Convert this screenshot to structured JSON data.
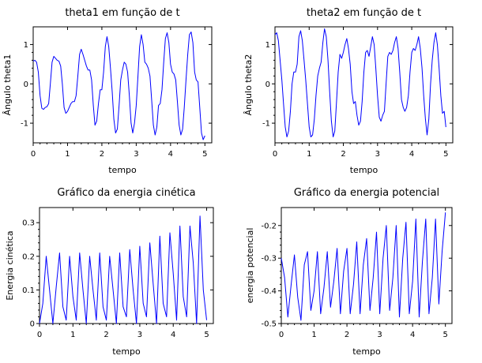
{
  "chart_data": [
    {
      "type": "line",
      "title": "theta1 em função de t",
      "xlabel": "tempo",
      "ylabel": "Ângulo theta1",
      "xlim": [
        0,
        5.2
      ],
      "ylim": [
        -1.5,
        1.45
      ],
      "xticks": [
        "0",
        "1",
        "2",
        "3",
        "4",
        "5"
      ],
      "yticks": [
        "-1",
        "0",
        "1"
      ],
      "color": "#0000ff",
      "series": [
        {
          "x": [
            0,
            0.05,
            0.1,
            0.15,
            0.2,
            0.25,
            0.3,
            0.35,
            0.4,
            0.45,
            0.5,
            0.55,
            0.6,
            0.65,
            0.7,
            0.75,
            0.8,
            0.85,
            0.9,
            0.95,
            1.0,
            1.05,
            1.1,
            1.15,
            1.2,
            1.25,
            1.3,
            1.35,
            1.4,
            1.45,
            1.5,
            1.55,
            1.6,
            1.65,
            1.7,
            1.75,
            1.8,
            1.85,
            1.9,
            1.95,
            2.0,
            2.05,
            2.1,
            2.15,
            2.2,
            2.25,
            2.3,
            2.35,
            2.4,
            2.45,
            2.5,
            2.55,
            2.6,
            2.65,
            2.7,
            2.75,
            2.8,
            2.85,
            2.9,
            2.95,
            3.0,
            3.05,
            3.1,
            3.15,
            3.2,
            3.25,
            3.3,
            3.35,
            3.4,
            3.45,
            3.5,
            3.55,
            3.6,
            3.65,
            3.7,
            3.75,
            3.8,
            3.85,
            3.9,
            3.95,
            4.0,
            4.05,
            4.1,
            4.15,
            4.2,
            4.25,
            4.3,
            4.35,
            4.4,
            4.45,
            4.5,
            4.55,
            4.6,
            4.65,
            4.7,
            4.75,
            4.8,
            4.85,
            4.9,
            4.95,
            5.0
          ],
          "y": [
            0.58,
            0.6,
            0.55,
            0.3,
            -0.3,
            -0.62,
            -0.65,
            -0.6,
            -0.58,
            -0.5,
            0.0,
            0.55,
            0.7,
            0.65,
            0.6,
            0.58,
            0.45,
            0.0,
            -0.6,
            -0.75,
            -0.7,
            -0.6,
            -0.5,
            -0.45,
            -0.45,
            -0.3,
            0.2,
            0.75,
            0.88,
            0.75,
            0.6,
            0.45,
            0.35,
            0.35,
            0.1,
            -0.55,
            -1.05,
            -0.95,
            -0.5,
            -0.15,
            -0.15,
            0.3,
            0.95,
            1.2,
            0.95,
            0.4,
            -0.2,
            -0.9,
            -1.25,
            -1.15,
            -0.55,
            0.1,
            0.35,
            0.55,
            0.5,
            0.3,
            -0.3,
            -1.0,
            -1.25,
            -1.0,
            -0.55,
            0.2,
            0.95,
            1.25,
            1.0,
            0.55,
            0.5,
            0.4,
            0.2,
            -0.4,
            -1.05,
            -1.3,
            -1.1,
            -0.55,
            -0.5,
            -0.15,
            0.55,
            1.15,
            1.3,
            1.05,
            0.5,
            0.3,
            0.25,
            0.1,
            -0.45,
            -1.05,
            -1.3,
            -1.15,
            -0.6,
            0.1,
            0.75,
            1.25,
            1.32,
            1.05,
            0.3,
            0.1,
            0.05,
            -0.6,
            -1.25,
            -1.42,
            -1.32
          ]
        }
      ]
    },
    {
      "type": "line",
      "title": "theta2 em função de t",
      "xlabel": "tempo",
      "ylabel": "Ângulo theta2",
      "xlim": [
        0,
        5.2
      ],
      "ylim": [
        -1.5,
        1.45
      ],
      "xticks": [
        "0",
        "1",
        "2",
        "3",
        "4",
        "5"
      ],
      "yticks": [
        "-1",
        "0",
        "1"
      ],
      "color": "#0000ff",
      "series": [
        {
          "x": [
            0,
            0.05,
            0.1,
            0.15,
            0.2,
            0.25,
            0.3,
            0.35,
            0.4,
            0.45,
            0.5,
            0.55,
            0.6,
            0.65,
            0.7,
            0.75,
            0.8,
            0.85,
            0.9,
            0.95,
            1.0,
            1.05,
            1.1,
            1.15,
            1.2,
            1.25,
            1.3,
            1.35,
            1.4,
            1.45,
            1.5,
            1.55,
            1.6,
            1.65,
            1.7,
            1.75,
            1.8,
            1.85,
            1.9,
            1.95,
            2.0,
            2.05,
            2.1,
            2.15,
            2.2,
            2.25,
            2.3,
            2.35,
            2.4,
            2.45,
            2.5,
            2.55,
            2.6,
            2.65,
            2.7,
            2.75,
            2.8,
            2.85,
            2.9,
            2.95,
            3.0,
            3.05,
            3.1,
            3.15,
            3.2,
            3.25,
            3.3,
            3.35,
            3.4,
            3.45,
            3.5,
            3.55,
            3.6,
            3.65,
            3.7,
            3.75,
            3.8,
            3.85,
            3.9,
            3.95,
            4.0,
            4.05,
            4.1,
            4.15,
            4.2,
            4.25,
            4.3,
            4.35,
            4.4,
            4.45,
            4.5,
            4.55,
            4.6,
            4.65,
            4.7,
            4.75,
            4.8,
            4.85,
            4.9,
            4.95,
            5.0
          ],
          "y": [
            1.25,
            1.3,
            1.1,
            0.6,
            0.1,
            -0.5,
            -1.1,
            -1.35,
            -1.2,
            -0.7,
            0.0,
            0.3,
            0.3,
            0.5,
            1.2,
            1.35,
            1.1,
            0.6,
            0.1,
            -0.5,
            -1.1,
            -1.35,
            -1.3,
            -0.9,
            -0.3,
            0.2,
            0.4,
            0.55,
            1.05,
            1.4,
            1.2,
            0.6,
            -0.2,
            -0.95,
            -1.35,
            -1.2,
            -0.45,
            0.3,
            0.75,
            0.65,
            0.8,
            1.0,
            1.15,
            0.9,
            0.5,
            -0.2,
            -0.5,
            -0.45,
            -0.8,
            -1.05,
            -0.95,
            -0.45,
            0.3,
            0.8,
            0.85,
            0.7,
            0.95,
            1.2,
            1.0,
            0.4,
            -0.3,
            -0.85,
            -0.95,
            -0.8,
            -0.7,
            0.0,
            0.7,
            0.8,
            0.75,
            0.85,
            1.05,
            1.2,
            0.9,
            0.3,
            -0.4,
            -0.6,
            -0.7,
            -0.6,
            -0.3,
            0.3,
            0.8,
            0.9,
            0.85,
            1.0,
            1.2,
            0.9,
            0.4,
            -0.3,
            -0.9,
            -1.3,
            -0.9,
            0.0,
            0.6,
            1.05,
            1.3,
            1.0,
            0.4,
            -0.3,
            -0.75,
            -0.7,
            -1.1
          ]
        }
      ]
    },
    {
      "type": "line",
      "title": "Gráfico da energia cinética",
      "xlabel": "tempo",
      "ylabel": "Energia cinética",
      "xlim": [
        0,
        5.2
      ],
      "ylim": [
        0,
        0.345
      ],
      "xticks": [
        "0",
        "1",
        "2",
        "3",
        "4",
        "5"
      ],
      "yticks": [
        "0",
        "0.1",
        "0.2",
        "0.3"
      ],
      "color": "#0000ff",
      "series": [
        {
          "x": [
            0,
            0.1,
            0.2,
            0.3,
            0.4,
            0.5,
            0.6,
            0.7,
            0.8,
            0.9,
            1.0,
            1.1,
            1.2,
            1.3,
            1.4,
            1.5,
            1.6,
            1.7,
            1.8,
            1.9,
            2.0,
            2.1,
            2.2,
            2.3,
            2.4,
            2.5,
            2.6,
            2.7,
            2.8,
            2.9,
            3.0,
            3.1,
            3.2,
            3.3,
            3.4,
            3.5,
            3.6,
            3.7,
            3.8,
            3.9,
            4.0,
            4.1,
            4.2,
            4.3,
            4.4,
            4.5,
            4.6,
            4.7,
            4.8,
            4.9,
            5.0
          ],
          "y": [
            0.0,
            0.06,
            0.2,
            0.1,
            0.0,
            0.11,
            0.21,
            0.05,
            0.01,
            0.2,
            0.08,
            0.01,
            0.21,
            0.1,
            0.0,
            0.2,
            0.1,
            0.01,
            0.21,
            0.05,
            0.01,
            0.2,
            0.1,
            0.0,
            0.21,
            0.05,
            0.02,
            0.22,
            0.1,
            0.0,
            0.23,
            0.06,
            0.02,
            0.24,
            0.12,
            0.0,
            0.26,
            0.06,
            0.02,
            0.27,
            0.15,
            0.01,
            0.29,
            0.08,
            0.02,
            0.29,
            0.18,
            0.0,
            0.32,
            0.1,
            0.01
          ]
        }
      ]
    },
    {
      "type": "line",
      "title": "Gráfico da energia potencial",
      "xlabel": "tempo",
      "ylabel": "energia potencial",
      "xlim": [
        0,
        5.2
      ],
      "ylim": [
        -0.5,
        -0.145
      ],
      "xticks": [
        "0",
        "1",
        "2",
        "3",
        "4",
        "5"
      ],
      "yticks": [
        "-0.5",
        "-0.4",
        "-0.3",
        "-0.2"
      ],
      "color": "#0000ff",
      "series": [
        {
          "x": [
            0,
            0.1,
            0.2,
            0.3,
            0.4,
            0.5,
            0.6,
            0.7,
            0.8,
            0.9,
            1.0,
            1.1,
            1.2,
            1.3,
            1.4,
            1.5,
            1.6,
            1.7,
            1.8,
            1.9,
            2.0,
            2.1,
            2.2,
            2.3,
            2.4,
            2.5,
            2.6,
            2.7,
            2.8,
            2.9,
            3.0,
            3.1,
            3.2,
            3.3,
            3.4,
            3.5,
            3.6,
            3.7,
            3.8,
            3.9,
            4.0,
            4.1,
            4.2,
            4.3,
            4.4,
            4.5,
            4.6,
            4.7,
            4.8,
            4.9,
            5.0
          ],
          "y": [
            -0.3,
            -0.36,
            -0.48,
            -0.38,
            -0.29,
            -0.42,
            -0.49,
            -0.32,
            -0.28,
            -0.46,
            -0.4,
            -0.28,
            -0.47,
            -0.39,
            -0.28,
            -0.45,
            -0.37,
            -0.27,
            -0.47,
            -0.34,
            -0.27,
            -0.47,
            -0.38,
            -0.25,
            -0.47,
            -0.32,
            -0.24,
            -0.46,
            -0.36,
            -0.22,
            -0.47,
            -0.3,
            -0.2,
            -0.46,
            -0.36,
            -0.2,
            -0.48,
            -0.3,
            -0.19,
            -0.47,
            -0.37,
            -0.18,
            -0.48,
            -0.31,
            -0.18,
            -0.47,
            -0.36,
            -0.18,
            -0.44,
            -0.28,
            -0.16
          ]
        }
      ]
    }
  ]
}
